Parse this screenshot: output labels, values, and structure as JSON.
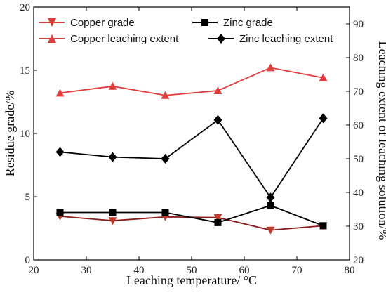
{
  "chart_data": {
    "type": "line",
    "x_axis": {
      "label": "Leaching temperature/ °C",
      "range": [
        20,
        80
      ],
      "ticks": [
        20,
        30,
        40,
        50,
        60,
        70,
        80
      ]
    },
    "y_left_axis": {
      "label": "Residue grade/%",
      "range": [
        0,
        20
      ],
      "ticks": [
        0,
        5,
        10,
        15,
        20
      ]
    },
    "y_right_axis": {
      "label": "Leaching extent of leaching solution/%",
      "range": [
        20,
        95
      ],
      "ticks": [
        20,
        30,
        40,
        50,
        60,
        70,
        80,
        90
      ]
    },
    "x": [
      25,
      35,
      45,
      55,
      65,
      75
    ],
    "series": [
      {
        "name": "Copper grade",
        "axis": "left",
        "marker": "triangle-down",
        "color": "#8b1a1a",
        "values": [
          3.45,
          3.1,
          3.4,
          3.35,
          2.35,
          2.7
        ]
      },
      {
        "name": "Zinc grade",
        "axis": "left",
        "marker": "square",
        "color": "#000000",
        "values": [
          3.75,
          3.75,
          3.75,
          2.95,
          4.3,
          2.7
        ]
      },
      {
        "name": "Copper leaching extent",
        "axis": "right",
        "marker": "triangle-up",
        "color": "#e23b3b",
        "values": [
          69.5,
          71.5,
          68.8,
          70.2,
          77,
          74
        ]
      },
      {
        "name": "Zinc leaching extent",
        "axis": "right",
        "marker": "diamond",
        "color": "#000000",
        "values": [
          52,
          50.5,
          50,
          61.5,
          38.5,
          62
        ]
      }
    ],
    "legend_position": "top",
    "grid": false
  }
}
